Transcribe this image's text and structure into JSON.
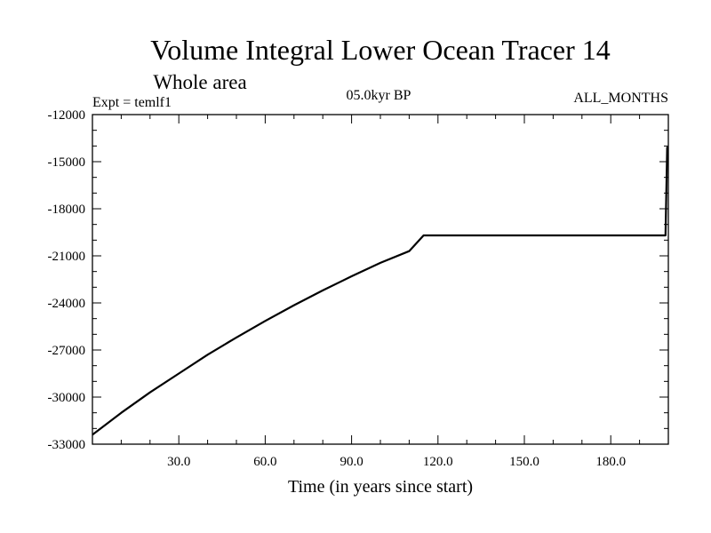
{
  "chart_data": {
    "type": "line",
    "title": "Volume Integral Lower Ocean Tracer 14",
    "subtitle": "Whole area",
    "annotations": {
      "left": "Expt = temlf1",
      "center": "05.0kyr BP",
      "right": "ALL_MONTHS"
    },
    "xlabel": "Time (in years since start)",
    "ylabel": "",
    "xlim": [
      0,
      200
    ],
    "ylim": [
      -33000,
      -12000
    ],
    "x_ticks": [
      30,
      60,
      90,
      120,
      150,
      180
    ],
    "x_tick_labels": [
      "30.0",
      "60.0",
      "90.0",
      "120.0",
      "150.0",
      "180.0"
    ],
    "y_ticks": [
      -12000,
      -15000,
      -18000,
      -21000,
      -24000,
      -27000,
      -30000,
      -33000
    ],
    "y_tick_labels": [
      "-12000",
      "-15000",
      "-18000",
      "-21000",
      "-24000",
      "-27000",
      "-30000",
      "-33000"
    ],
    "grid": false,
    "series": [
      {
        "name": "Volume Integral Lower Ocean Tracer 14",
        "color": "#000000",
        "x": [
          0,
          10,
          20,
          30,
          40,
          50,
          60,
          70,
          80,
          90,
          100,
          110,
          115,
          120,
          130,
          140,
          150,
          160,
          170,
          180,
          190,
          199,
          199.6,
          200
        ],
        "y": [
          -32400,
          -31000,
          -29700,
          -28500,
          -27300,
          -26200,
          -25150,
          -24150,
          -23200,
          -22300,
          -21450,
          -20700,
          -19700,
          -19700,
          -19700,
          -19700,
          -19700,
          -19700,
          -19700,
          -19700,
          -19700,
          -19700,
          -14100,
          -14100
        ]
      }
    ]
  }
}
